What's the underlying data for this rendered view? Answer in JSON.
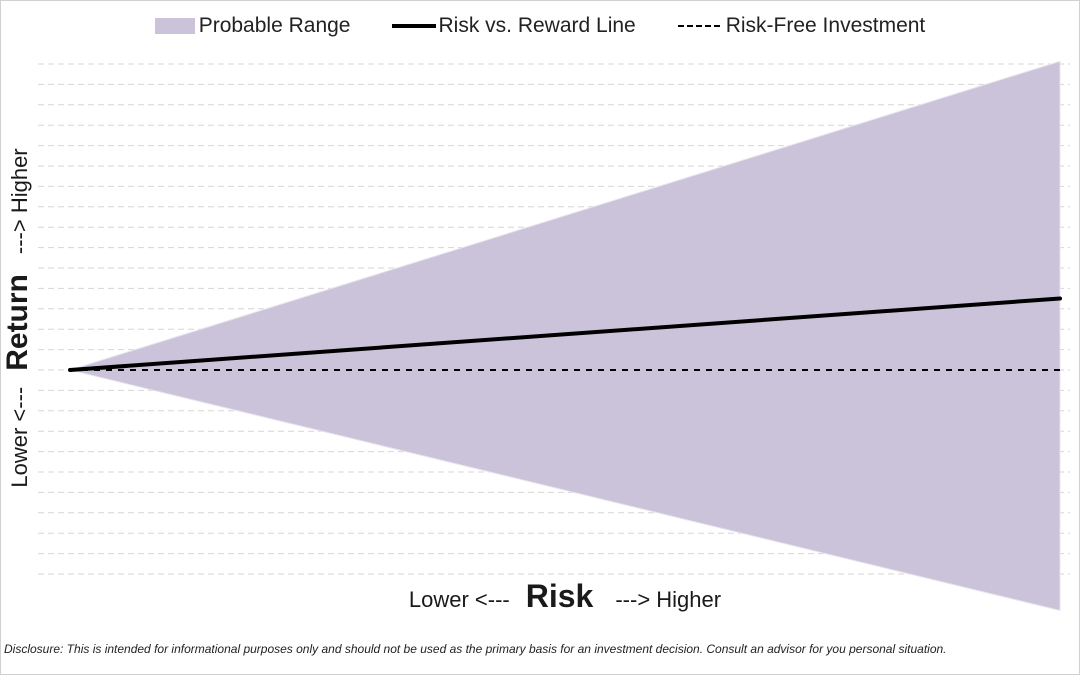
{
  "chart_data": {
    "type": "area",
    "x": [
      0,
      1
    ],
    "ylim": [
      -1,
      1
    ],
    "xlim": [
      0,
      1
    ],
    "grid": true,
    "legend_position": "top",
    "series": [
      {
        "name": "Probable Range",
        "kind": "band",
        "x": [
          0,
          1
        ],
        "lower": [
          0,
          -0.74
        ],
        "upper": [
          0,
          0.95
        ],
        "color": "#cbc3d9"
      },
      {
        "name": "Risk vs. Reward Line",
        "kind": "line",
        "x": [
          0,
          1
        ],
        "values": [
          0,
          0.22
        ],
        "color": "#000000"
      },
      {
        "name": "Risk-Free Investment",
        "kind": "dashed",
        "x": [
          0,
          1
        ],
        "values": [
          0,
          0
        ],
        "color": "#000000"
      }
    ],
    "xlabel": {
      "low": "Lower <---",
      "word": "Risk",
      "high": "---> Higher"
    },
    "ylabel": {
      "low": "Lower <---",
      "word": "Return",
      "high": "---> Higher"
    }
  },
  "disclosure": "Disclosure: This is intended for informational purposes only and should not be used as the primary basis for an investment decision.  Consult an advisor for you personal situation."
}
